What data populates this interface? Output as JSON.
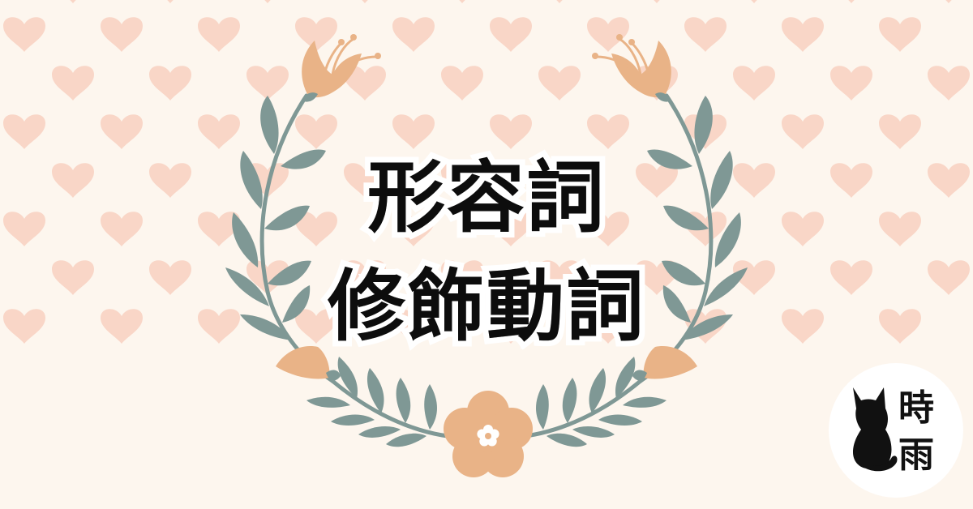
{
  "title": {
    "line1": "形容詞",
    "line2": "修飾動詞"
  },
  "badge": {
    "char1": "時",
    "char2": "雨"
  },
  "colors": {
    "background": "#fdf6ee",
    "heart": "#f9d6c7",
    "leaf": "#7f9895",
    "flower": "#e9b387",
    "title_text": "#0d0d0d",
    "title_outline": "#ffffff",
    "badge_bg": "#ffffff",
    "badge_ink": "#111111"
  },
  "icons": {
    "pattern": "heart-icon",
    "wreath": "floral-wreath",
    "badge_mark": "black-cat-icon"
  }
}
